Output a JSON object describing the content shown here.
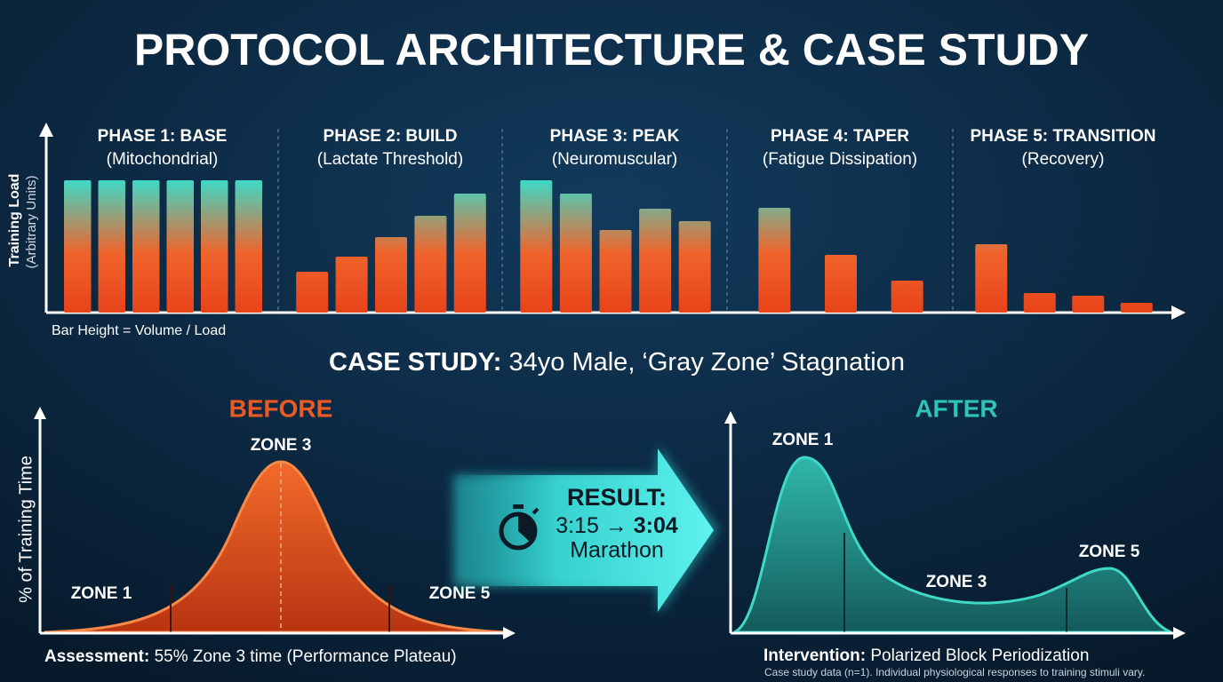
{
  "title": "PROTOCOL ARCHITECTURE & CASE STUDY",
  "chart_data": {
    "type": "bar",
    "y_label": "Training Load",
    "y_sublabel": "(Arbitrary Units)",
    "note": "Bar Height = Volume / Load",
    "ylim": [
      0,
      160
    ],
    "phases": [
      {
        "name": "PHASE 1: BASE",
        "subtitle": "(Mitochondrial)",
        "values": [
          149,
          149,
          149,
          149,
          149,
          149
        ]
      },
      {
        "name": "PHASE 2: BUILD",
        "subtitle": "(Lactate Threshold)",
        "values": [
          46,
          63,
          85,
          109,
          134
        ]
      },
      {
        "name": "PHASE 3: PEAK",
        "subtitle": "(Neuromuscular)",
        "values": [
          149,
          134,
          93,
          117,
          103
        ]
      },
      {
        "name": "PHASE 4: TAPER",
        "subtitle": "(Fatigue Dissipation)",
        "values": [
          118,
          65,
          36
        ]
      },
      {
        "name": "PHASE 5: TRANSITION",
        "subtitle": "(Recovery)",
        "values": [
          77,
          22,
          19,
          11
        ]
      }
    ]
  },
  "case_study": {
    "label": "CASE STUDY:",
    "text": "34yo Male, ‘Gray Zone’ Stagnation"
  },
  "before": {
    "title": "BEFORE",
    "y_label": "% of Training Time",
    "zones": [
      "ZONE 1",
      "ZONE 3",
      "ZONE 5"
    ],
    "caption_label": "Assessment:",
    "caption": "55% Zone 3 time (Performance Plateau)"
  },
  "result": {
    "label": "RESULT:",
    "time_before": "3:15",
    "arrow": "→",
    "time_after": "3:04",
    "event": "Marathon"
  },
  "after": {
    "title": "AFTER",
    "zones": [
      "ZONE 1",
      "ZONE 3",
      "ZONE 5"
    ],
    "caption_label": "Intervention:",
    "caption": "Polarized Block Periodization",
    "footnote": "Case study data (n=1). Individual physiological responses to training stimuli vary."
  }
}
